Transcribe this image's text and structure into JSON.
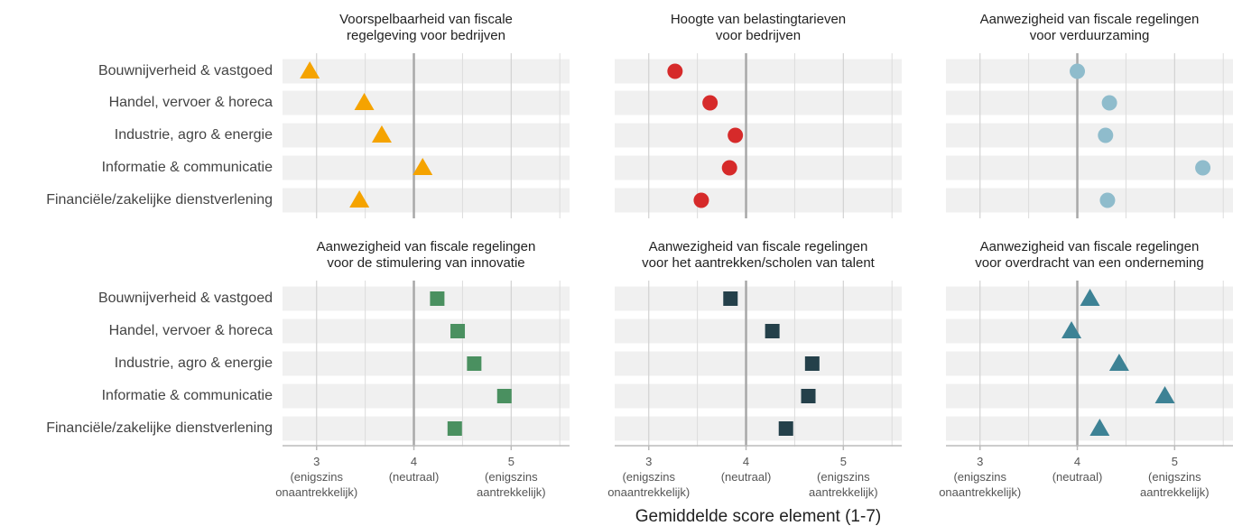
{
  "categories": [
    "Bouwnijverheid & vastgoed",
    "Handel, vervoer & horeca",
    "Industrie, agro & energie",
    "Informatie & communicatie",
    "Financiële/zakelijke dienstverlening"
  ],
  "xlabel": "Gemiddelde score element (1-7)",
  "xlim": [
    2.65,
    5.6
  ],
  "xticks": [
    {
      "value": 3,
      "label": "3\n(enigszins\nonaantrekkelijk)"
    },
    {
      "value": 4,
      "label": "4\n(neutraal)"
    },
    {
      "value": 5,
      "label": "5\n(enigszins\naantrekkelijk)"
    }
  ],
  "minor_xticks": [
    3.5,
    4.5,
    5.5
  ],
  "reference_line": 4,
  "chart_data": [
    {
      "type": "dot",
      "title": [
        "Voorspelbaarheid van fiscale",
        "regelgeving voor bedrijven"
      ],
      "marker": "triangle",
      "color": "#f5a300",
      "values": [
        2.93,
        3.49,
        3.67,
        4.09,
        3.44
      ]
    },
    {
      "type": "dot",
      "title": [
        "Hoogte van belastingtarieven",
        "voor bedrijven"
      ],
      "marker": "circle",
      "color": "#d62a2a",
      "values": [
        3.27,
        3.63,
        3.89,
        3.83,
        3.54
      ]
    },
    {
      "type": "dot",
      "title": [
        "Aanwezigheid van fiscale regelingen",
        "voor verduurzaming"
      ],
      "marker": "circle",
      "color": "#8fbccc",
      "values": [
        4.0,
        4.33,
        4.29,
        5.29,
        4.31
      ]
    },
    {
      "type": "dot",
      "title": [
        "Aanwezigheid van fiscale regelingen",
        "voor de stimulering van innovatie"
      ],
      "marker": "square",
      "color": "#4a9060",
      "values": [
        4.24,
        4.45,
        4.62,
        4.93,
        4.42
      ]
    },
    {
      "type": "dot",
      "title": [
        "Aanwezigheid van fiscale regelingen",
        "voor het aantrekken/scholen van talent"
      ],
      "marker": "square",
      "color": "#24404a",
      "values": [
        3.84,
        4.27,
        4.68,
        4.64,
        4.41
      ]
    },
    {
      "type": "dot",
      "title": [
        "Aanwezigheid van fiscale regelingen",
        "voor overdracht van een onderneming"
      ],
      "marker": "triangle",
      "color": "#3d8295",
      "values": [
        4.13,
        3.94,
        4.43,
        4.9,
        4.23
      ]
    }
  ]
}
